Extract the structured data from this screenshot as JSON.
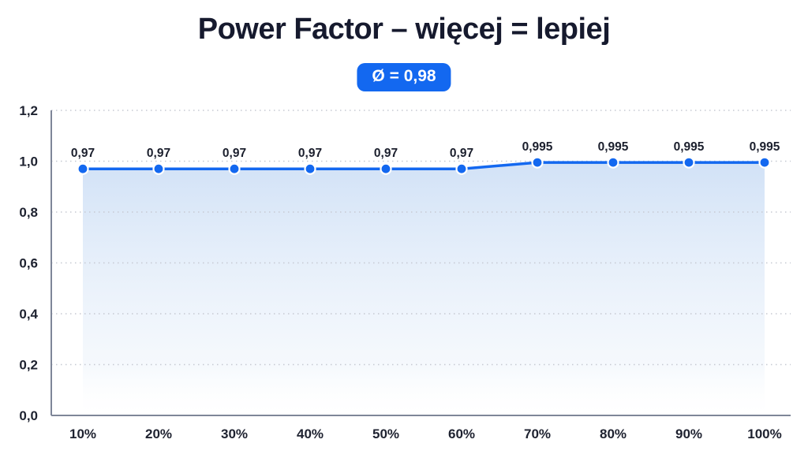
{
  "header": {
    "title": "Power Factor – więcej = lepiej",
    "average_badge": "Ø = 0,98"
  },
  "colors": {
    "accent_blue": "#1368f0",
    "title_text": "#161a2e",
    "grid": "#c6c9d2",
    "axis": "#7e8698",
    "tick_text": "#1e2230",
    "area_top": "#cfe0f6",
    "area_bottom": "#ffffff"
  },
  "chart_data": {
    "type": "area",
    "title": "Power Factor – więcej = lepiej",
    "subtitle_badge": "Ø = 0,98",
    "average": 0.98,
    "categories": [
      "10%",
      "20%",
      "30%",
      "40%",
      "50%",
      "60%",
      "70%",
      "80%",
      "90%",
      "100%"
    ],
    "values": [
      0.97,
      0.97,
      0.97,
      0.97,
      0.97,
      0.97,
      0.995,
      0.995,
      0.995,
      0.995
    ],
    "point_labels": [
      "0,97",
      "0,97",
      "0,97",
      "0,97",
      "0,97",
      "0,97",
      "0,995",
      "0,995",
      "0,995",
      "0,995"
    ],
    "y_ticks": [
      "1,2",
      "1,0",
      "0,8",
      "0,6",
      "0,4",
      "0,2",
      "0,0"
    ],
    "y_tick_values": [
      1.2,
      1.0,
      0.8,
      0.6,
      0.4,
      0.2,
      0.0
    ],
    "ylim": [
      0,
      1.2
    ],
    "xlabel": "",
    "ylabel": "",
    "grid": "horizontal-dotted",
    "legend_position": "none"
  }
}
